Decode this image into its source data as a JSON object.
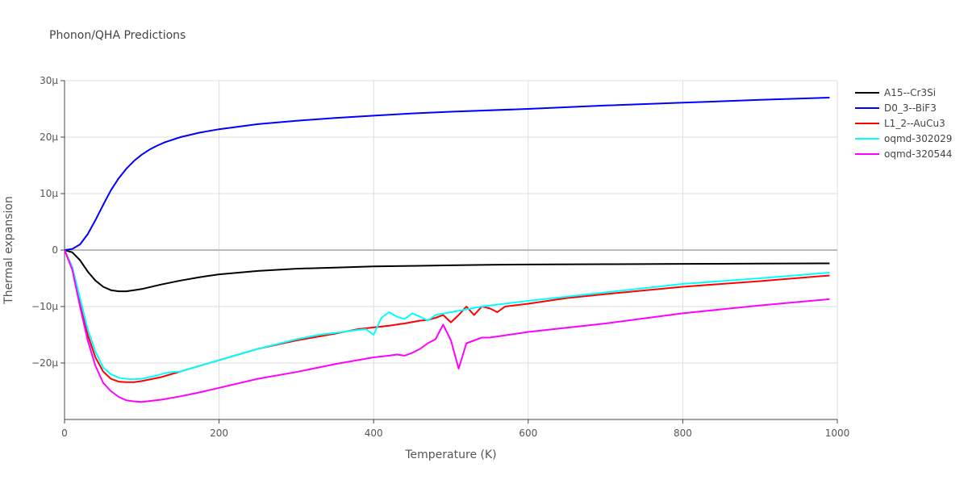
{
  "chart_data": {
    "type": "line",
    "title": "Phonon/QHA Predictions",
    "xlabel": "Temperature (K)",
    "ylabel": "Thermal expansion",
    "xlim": [
      0,
      1000
    ],
    "ylim": [
      -30,
      30
    ],
    "x_ticks": [
      0,
      200,
      400,
      600,
      800,
      1000
    ],
    "x_tick_labels": [
      "0",
      "200",
      "400",
      "600",
      "800",
      "1000"
    ],
    "y_ticks": [
      -20,
      -10,
      0,
      10,
      20,
      30
    ],
    "y_tick_labels": [
      "−20μ",
      "−10μ",
      "0",
      "10μ",
      "20μ",
      "30μ"
    ],
    "grid": true,
    "legend_position": "top-right",
    "series": [
      {
        "name": "A15--Cr3Si",
        "color": "#000000",
        "x": [
          0,
          10,
          20,
          30,
          40,
          50,
          60,
          70,
          80,
          90,
          100,
          125,
          150,
          175,
          200,
          250,
          300,
          350,
          400,
          450,
          500,
          550,
          600,
          700,
          800,
          900,
          990
        ],
        "y": [
          0,
          -0.4,
          -1.8,
          -3.8,
          -5.4,
          -6.5,
          -7.1,
          -7.3,
          -7.3,
          -7.1,
          -6.9,
          -6.1,
          -5.4,
          -4.8,
          -4.3,
          -3.7,
          -3.3,
          -3.1,
          -2.9,
          -2.8,
          -2.7,
          -2.6,
          -2.55,
          -2.5,
          -2.45,
          -2.4,
          -2.35
        ]
      },
      {
        "name": "D0_3--BiF3",
        "color": "#0000ff",
        "x": [
          0,
          10,
          20,
          30,
          40,
          50,
          60,
          70,
          80,
          90,
          100,
          110,
          120,
          130,
          150,
          175,
          200,
          250,
          300,
          350,
          400,
          450,
          500,
          600,
          700,
          800,
          900,
          990
        ],
        "y": [
          0,
          0.2,
          1.0,
          2.8,
          5.3,
          8.0,
          10.6,
          12.7,
          14.4,
          15.8,
          16.9,
          17.8,
          18.5,
          19.1,
          20.0,
          20.8,
          21.4,
          22.3,
          22.9,
          23.4,
          23.8,
          24.2,
          24.5,
          25.0,
          25.6,
          26.1,
          26.6,
          27.0
        ]
      },
      {
        "name": "L1_2--AuCu3",
        "color": "#ff0000",
        "x": [
          0,
          10,
          20,
          30,
          40,
          50,
          60,
          70,
          80,
          90,
          100,
          125,
          150,
          175,
          200,
          250,
          300,
          350,
          380,
          400,
          420,
          440,
          460,
          470,
          480,
          490,
          500,
          510,
          520,
          530,
          540,
          550,
          560,
          570,
          600,
          650,
          700,
          800,
          900,
          990
        ],
        "y": [
          0,
          -3,
          -9,
          -15,
          -19,
          -21.5,
          -22.8,
          -23.3,
          -23.4,
          -23.4,
          -23.2,
          -22.5,
          -21.5,
          -20.5,
          -19.5,
          -17.5,
          -16.0,
          -14.8,
          -14.0,
          -13.7,
          -13.4,
          -13.0,
          -12.5,
          -12.4,
          -12.0,
          -11.5,
          -12.8,
          -11.5,
          -10.0,
          -11.5,
          -10.0,
          -10.3,
          -11.0,
          -10.0,
          -9.5,
          -8.5,
          -7.8,
          -6.5,
          -5.5,
          -4.5
        ]
      },
      {
        "name": "oqmd-302029",
        "color": "#00ffff",
        "x": [
          0,
          10,
          20,
          30,
          40,
          50,
          60,
          70,
          80,
          90,
          100,
          120,
          130,
          140,
          150,
          175,
          200,
          250,
          300,
          330,
          360,
          370,
          390,
          400,
          410,
          420,
          430,
          440,
          450,
          460,
          470,
          480,
          500,
          540,
          600,
          700,
          800,
          900,
          990
        ],
        "y": [
          0,
          -3,
          -8.5,
          -14,
          -18,
          -20.8,
          -22.0,
          -22.6,
          -22.8,
          -22.9,
          -22.8,
          -22.2,
          -21.8,
          -21.6,
          -21.5,
          -20.5,
          -19.5,
          -17.5,
          -15.8,
          -15.0,
          -14.5,
          -14.3,
          -14.0,
          -15.0,
          -12.0,
          -11.0,
          -11.8,
          -12.2,
          -11.2,
          -11.8,
          -12.5,
          -11.5,
          -11.0,
          -10.0,
          -9.0,
          -7.5,
          -6.0,
          -5.0,
          -4.0
        ]
      },
      {
        "name": "oqmd-320544",
        "color": "#ff00ff",
        "x": [
          0,
          10,
          20,
          30,
          40,
          50,
          60,
          70,
          80,
          90,
          100,
          125,
          150,
          175,
          200,
          250,
          300,
          350,
          400,
          420,
          430,
          440,
          450,
          460,
          470,
          480,
          490,
          500,
          510,
          520,
          540,
          550,
          560,
          600,
          700,
          800,
          900,
          990
        ],
        "y": [
          0,
          -3.5,
          -10,
          -16,
          -20.5,
          -23.5,
          -25,
          -26,
          -26.6,
          -26.8,
          -26.9,
          -26.5,
          -25.9,
          -25.2,
          -24.4,
          -22.8,
          -21.6,
          -20.2,
          -19.0,
          -18.7,
          -18.5,
          -18.7,
          -18.2,
          -17.5,
          -16.5,
          -15.8,
          -13.2,
          -16.0,
          -21.0,
          -16.5,
          -15.5,
          -15.5,
          -15.3,
          -14.5,
          -13.0,
          -11.2,
          -9.8,
          -8.7
        ]
      }
    ]
  }
}
